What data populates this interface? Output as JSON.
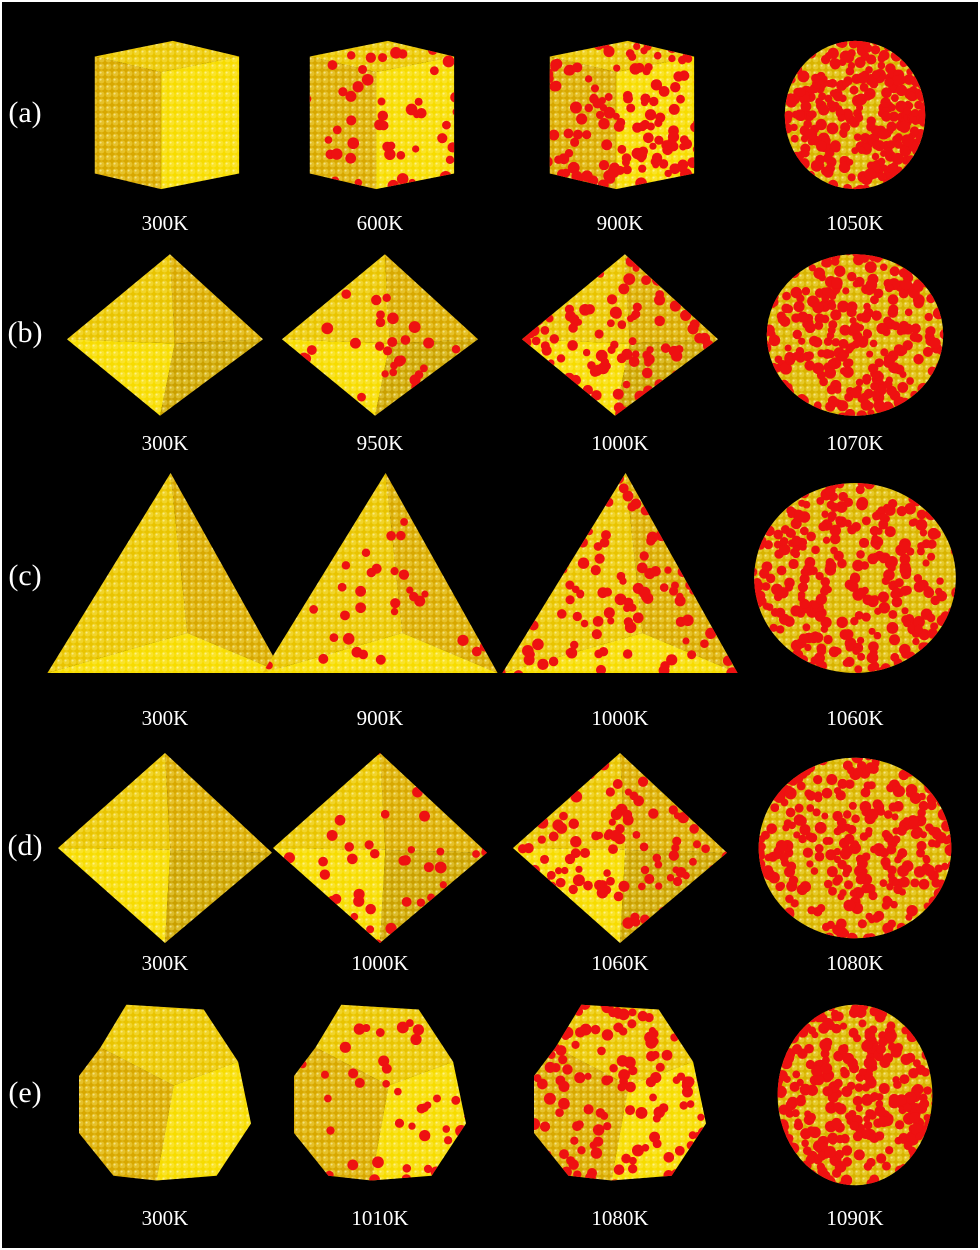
{
  "rows": [
    {
      "label": "(a)",
      "temperatures": [
        "300K",
        "600K",
        "900K",
        "1050K"
      ]
    },
    {
      "label": "(b)",
      "temperatures": [
        "300K",
        "950K",
        "1000K",
        "1070K"
      ]
    },
    {
      "label": "(c)",
      "temperatures": [
        "300K",
        "900K",
        "1000K",
        "1060K"
      ]
    },
    {
      "label": "(d)",
      "temperatures": [
        "300K",
        "1000K",
        "1060K",
        "1080K"
      ]
    },
    {
      "label": "(e)",
      "temperatures": [
        "300K",
        "1010K",
        "1080K",
        "1090K"
      ]
    }
  ]
}
